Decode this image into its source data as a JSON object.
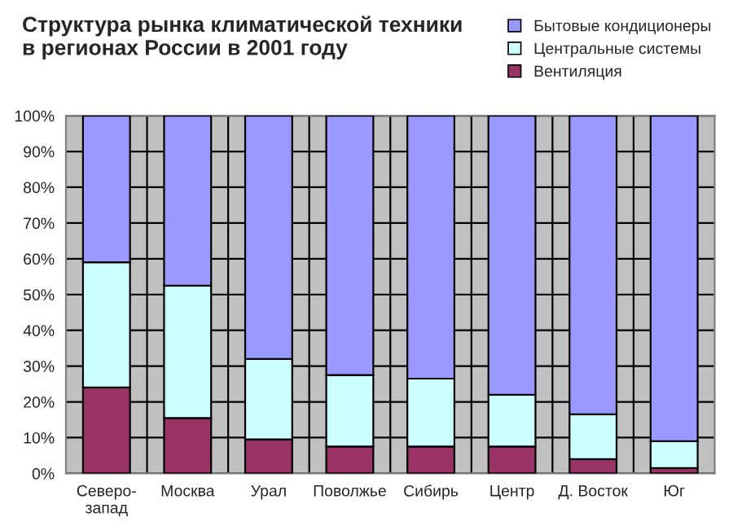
{
  "chart_data": {
    "type": "bar",
    "stacked": true,
    "title": "Структура рынка климатической техники\nв регионах России в 2001 году",
    "categories": [
      "Северо-\nзапад",
      "Москва",
      "Урал",
      "Поволжье",
      "Сибирь",
      "Центр",
      "Д. Восток",
      "Юг"
    ],
    "series": [
      {
        "name": "Вентиляция",
        "color": "#993366",
        "values": [
          24,
          15.5,
          9.5,
          7.5,
          7.5,
          7.5,
          4,
          1.5
        ]
      },
      {
        "name": "Центральные системы",
        "color": "#ccffff",
        "values": [
          35,
          37,
          22.5,
          20,
          19,
          14.5,
          12.5,
          7.5
        ]
      },
      {
        "name": "Бытовые кондиционеры",
        "color": "#9999ff",
        "values": [
          41,
          47.5,
          68,
          72.5,
          73.5,
          78,
          83.5,
          91
        ]
      }
    ],
    "ylim": [
      0,
      100
    ],
    "yticks": [
      {
        "value": 0,
        "label": "0%"
      },
      {
        "value": 10,
        "label": "10%"
      },
      {
        "value": 20,
        "label": "20%"
      },
      {
        "value": 30,
        "label": "30%"
      },
      {
        "value": 40,
        "label": "40%"
      },
      {
        "value": 50,
        "label": "50%"
      },
      {
        "value": 60,
        "label": "60%"
      },
      {
        "value": 70,
        "label": "70%"
      },
      {
        "value": 80,
        "label": "80%"
      },
      {
        "value": 90,
        "label": "90%"
      },
      {
        "value": 100,
        "label": "100%"
      }
    ],
    "grid": true,
    "legend": "top right"
  }
}
